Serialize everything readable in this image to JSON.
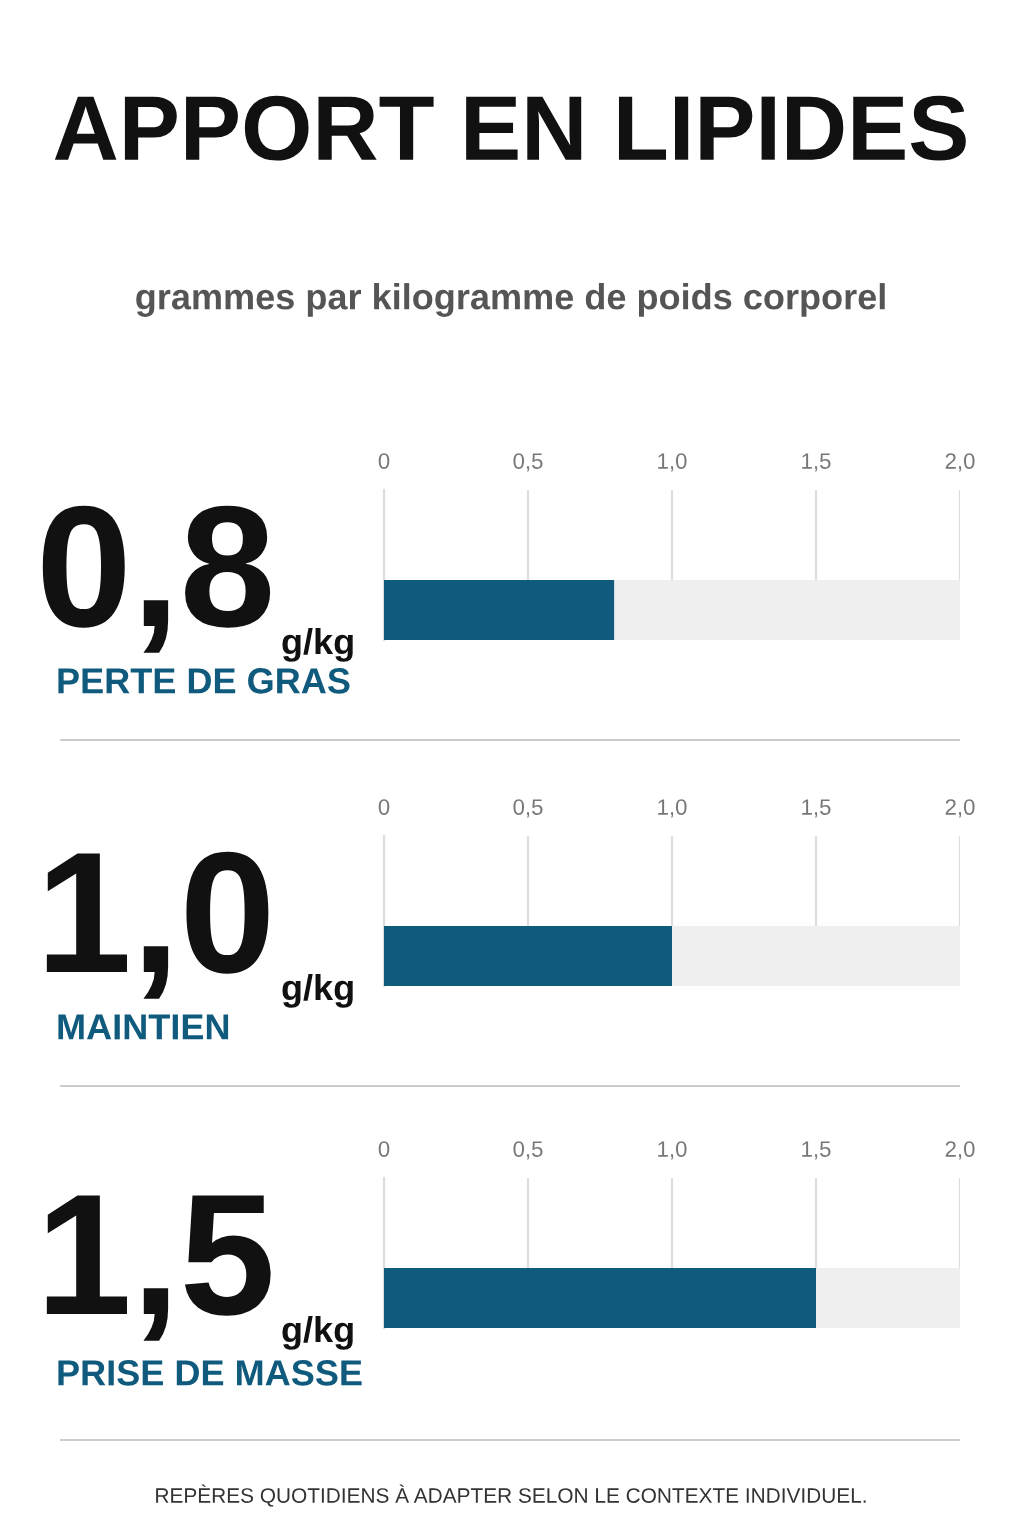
{
  "chart_data": [
    {
      "type": "bar",
      "orientation": "horizontal",
      "stacked": true,
      "title": "APPORT EN LIPIDES",
      "subtitle": "grammes par kilogramme de poids corporel",
      "categories": [
        "PERTE DE GRAS"
      ],
      "series": [
        {
          "color": "#0f5a7d",
          "values": [
            0.8
          ],
          "value_labels": [
            "0,8"
          ]
        },
        {
          "color": "#efefef",
          "values": [
            1.2
          ]
        }
      ],
      "xlabel": "g/kg",
      "xlim": [
        0,
        2
      ],
      "xticks": [
        0,
        {
          "value": 0.5,
          "label": "0,5"
        },
        {
          "value": 1,
          "label": "1,0"
        },
        {
          "value": 1.5,
          "label": "1,5"
        },
        {
          "value": 2,
          "label": "2,0"
        }
      ],
      "grid": "x"
    },
    {
      "type": "bar",
      "orientation": "horizontal",
      "stacked": true,
      "categories": [
        "MAINTIEN"
      ],
      "series": [
        {
          "color": "#0f5a7d",
          "values": [
            1.0
          ],
          "value_labels": [
            "1,0"
          ]
        },
        {
          "color": "#efefef",
          "values": [
            1.0
          ]
        }
      ],
      "xlabel": "g/kg",
      "xlim": [
        0,
        2
      ],
      "xticks": [
        0,
        {
          "value": 0.5,
          "label": "0,5"
        },
        {
          "value": 1,
          "label": "1,0"
        },
        {
          "value": 1.5,
          "label": "1,5"
        },
        {
          "value": 2,
          "label": "2,0"
        }
      ],
      "grid": "x"
    },
    {
      "type": "bar",
      "orientation": "horizontal",
      "stacked": true,
      "categories": [
        "PRISE DE MASSE"
      ],
      "series": [
        {
          "color": "#0f5a7d",
          "values": [
            1.5
          ],
          "value_labels": [
            "1,5"
          ]
        },
        {
          "color": "#efefef",
          "values": [
            0.5
          ]
        }
      ],
      "xlabel": "g/kg",
      "xlim": [
        0,
        2
      ],
      "xticks": [
        0,
        {
          "value": 0.5,
          "label": "0,5"
        },
        {
          "value": 1,
          "label": "1,0"
        },
        {
          "value": 1.5,
          "label": "1,5"
        },
        {
          "value": 2,
          "label": "2,0"
        }
      ],
      "grid": "x",
      "annotations": [
        "REPÈRES QUOTIDIENS À ADAPTER SELON LE CONTEXTE INDIVIDUEL."
      ]
    }
  ]
}
